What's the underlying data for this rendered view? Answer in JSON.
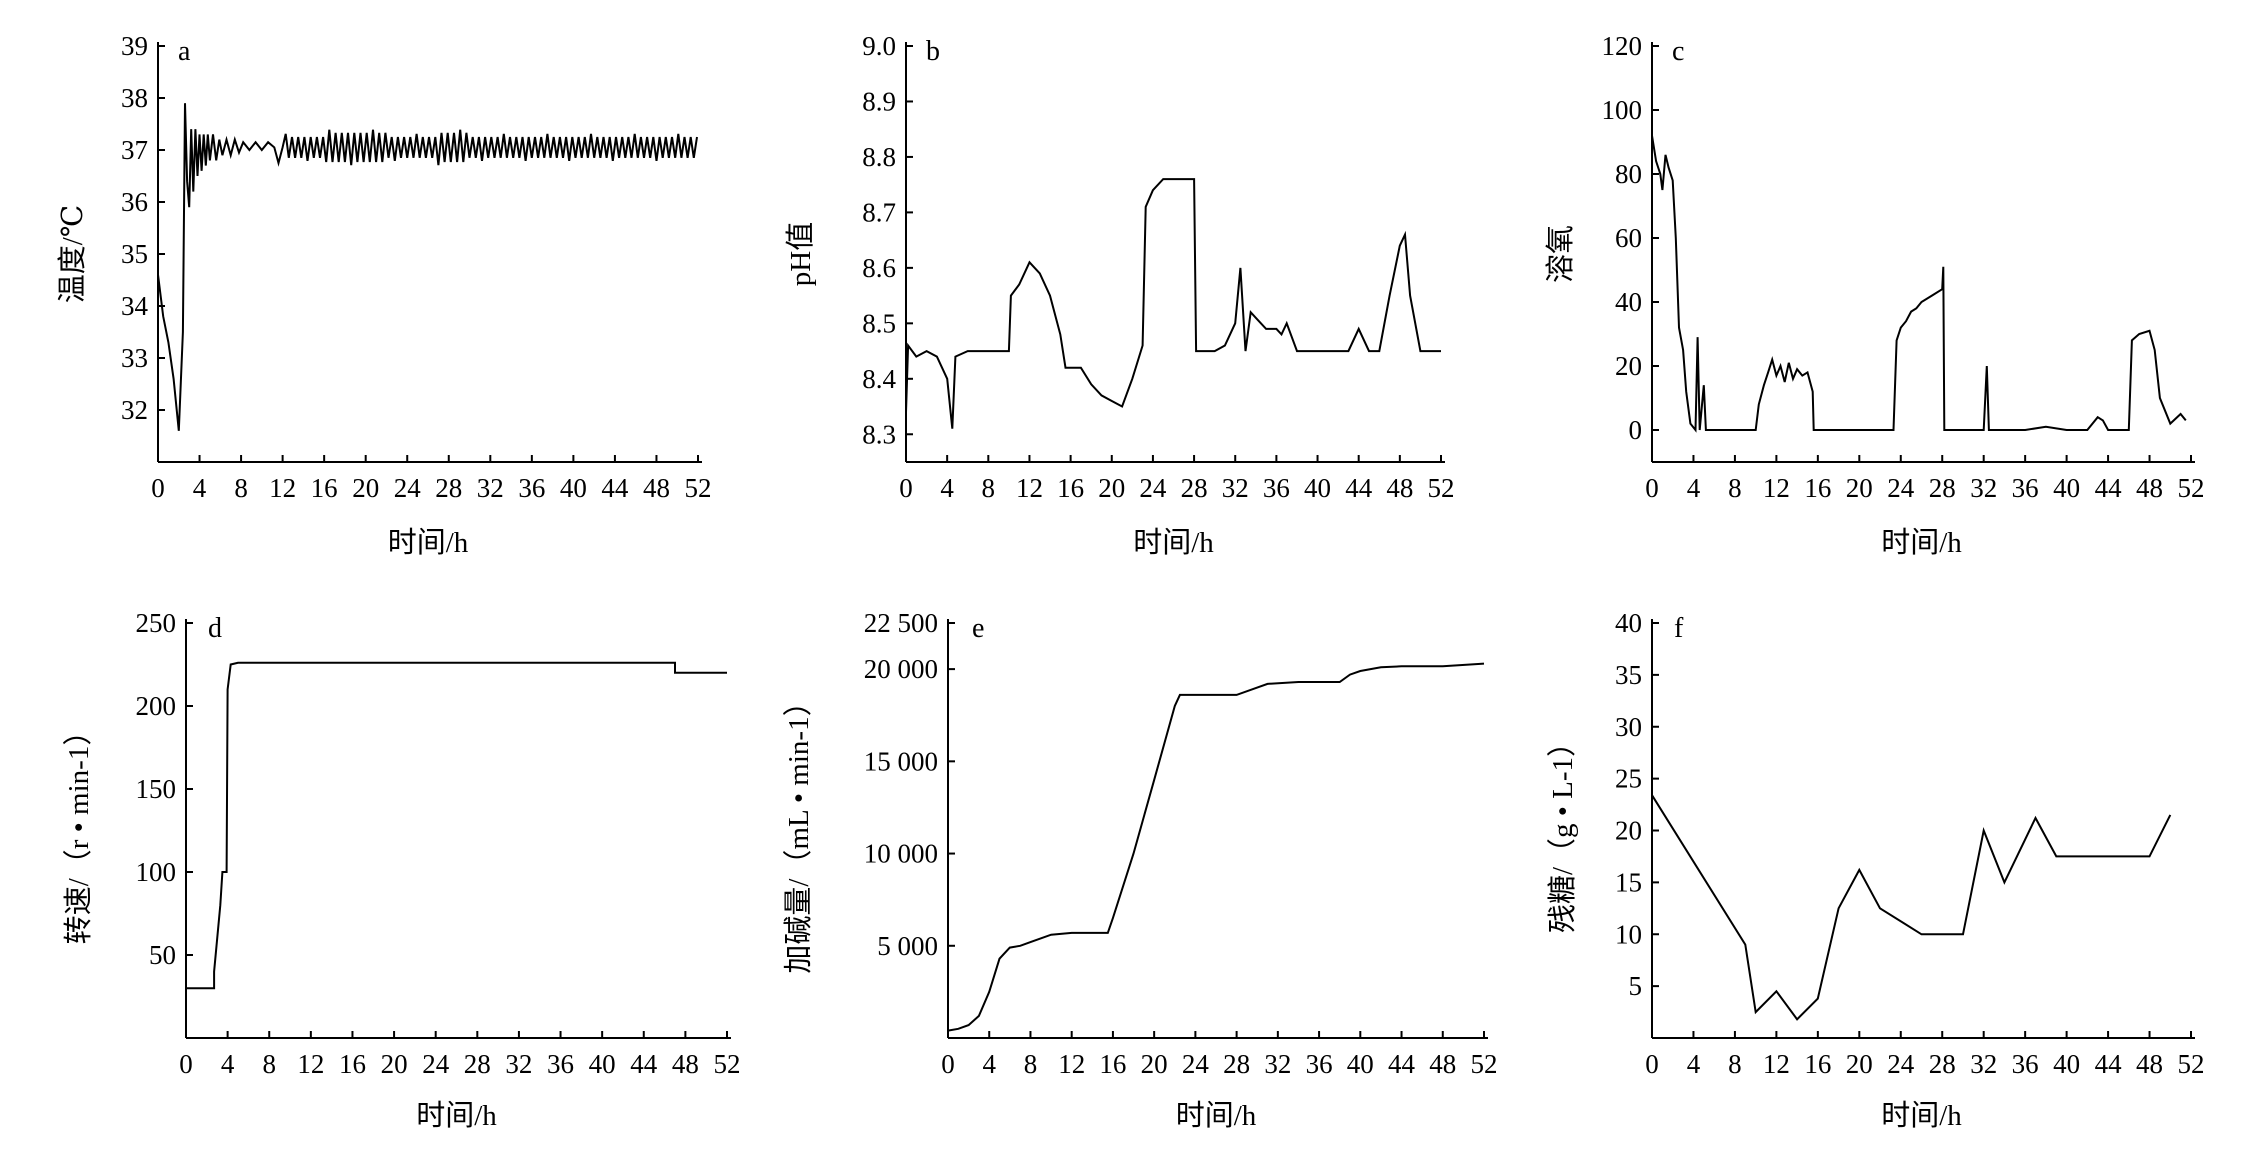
{
  "chart_data": [
    {
      "panel": "a",
      "type": "line",
      "xlabel": "时间/h",
      "ylabel": "温度/℃",
      "xlim": [
        0,
        52
      ],
      "ylim": [
        31,
        39
      ],
      "xticks": [
        0,
        4,
        8,
        12,
        16,
        20,
        24,
        28,
        32,
        36,
        40,
        44,
        48,
        52
      ],
      "yticks": [
        32,
        33,
        34,
        35,
        36,
        37,
        38,
        39
      ],
      "ytick_labels": [
        "32",
        "33",
        "34",
        "35",
        "36",
        "37",
        "38",
        "39"
      ],
      "oscillation": {
        "start": 3.5,
        "end": 52,
        "center": 37.05,
        "amplitude": 0.2,
        "period_h": 0.6
      },
      "points": [
        [
          0,
          34.6
        ],
        [
          0.5,
          33.8
        ],
        [
          1,
          33.3
        ],
        [
          1.5,
          32.6
        ],
        [
          2,
          31.6
        ],
        [
          2.4,
          33.5
        ],
        [
          2.6,
          37.9
        ],
        [
          2.8,
          36.4
        ],
        [
          3.0,
          35.9
        ],
        [
          3.2,
          37.4
        ],
        [
          3.4,
          36.2
        ],
        [
          3.6,
          37.4
        ],
        [
          3.8,
          36.5
        ],
        [
          4.0,
          37.3
        ],
        [
          4.2,
          36.6
        ],
        [
          4.4,
          37.3
        ],
        [
          4.6,
          36.7
        ],
        [
          4.8,
          37.3
        ],
        [
          5.0,
          36.8
        ],
        [
          5.3,
          37.3
        ],
        [
          5.6,
          36.8
        ],
        [
          5.9,
          37.2
        ],
        [
          6.2,
          36.9
        ],
        [
          6.6,
          37.2
        ],
        [
          7.0,
          36.9
        ],
        [
          7.4,
          37.2
        ],
        [
          7.8,
          36.95
        ],
        [
          8.2,
          37.15
        ],
        [
          8.8,
          37.0
        ],
        [
          9.4,
          37.15
        ],
        [
          10.0,
          37.0
        ],
        [
          10.6,
          37.15
        ],
        [
          11.2,
          37.05
        ],
        [
          11.6,
          36.75
        ],
        [
          12.0,
          37.05
        ]
      ]
    },
    {
      "panel": "b",
      "type": "line",
      "xlabel": "时间/h",
      "ylabel": "pH值",
      "xlim": [
        0,
        52
      ],
      "ylim": [
        8.25,
        9.0
      ],
      "xticks": [
        0,
        4,
        8,
        12,
        16,
        20,
        24,
        28,
        32,
        36,
        40,
        44,
        48,
        52
      ],
      "yticks": [
        8.3,
        8.4,
        8.5,
        8.6,
        8.7,
        8.8,
        8.9,
        9.0
      ],
      "ytick_labels": [
        "8.3",
        "8.4",
        "8.5",
        "8.6",
        "8.7",
        "8.8",
        "8.9",
        "9.0"
      ],
      "points": [
        [
          0,
          8.34
        ],
        [
          0.2,
          8.46
        ],
        [
          1,
          8.44
        ],
        [
          2,
          8.45
        ],
        [
          3,
          8.44
        ],
        [
          4,
          8.4
        ],
        [
          4.5,
          8.31
        ],
        [
          4.8,
          8.44
        ],
        [
          6,
          8.45
        ],
        [
          8,
          8.45
        ],
        [
          10,
          8.45
        ],
        [
          10.2,
          8.55
        ],
        [
          11,
          8.57
        ],
        [
          12,
          8.61
        ],
        [
          13,
          8.59
        ],
        [
          14,
          8.55
        ],
        [
          15,
          8.48
        ],
        [
          15.5,
          8.42
        ],
        [
          17,
          8.42
        ],
        [
          18,
          8.39
        ],
        [
          19,
          8.37
        ],
        [
          20,
          8.36
        ],
        [
          21,
          8.35
        ],
        [
          22,
          8.4
        ],
        [
          23,
          8.46
        ],
        [
          23.3,
          8.71
        ],
        [
          24,
          8.74
        ],
        [
          25,
          8.76
        ],
        [
          26,
          8.76
        ],
        [
          28,
          8.76
        ],
        [
          28.2,
          8.45
        ],
        [
          30,
          8.45
        ],
        [
          31,
          8.46
        ],
        [
          32,
          8.5
        ],
        [
          32.5,
          8.6
        ],
        [
          33,
          8.45
        ],
        [
          33.5,
          8.52
        ],
        [
          34,
          8.51
        ],
        [
          35,
          8.49
        ],
        [
          36,
          8.49
        ],
        [
          36.5,
          8.48
        ],
        [
          37,
          8.5
        ],
        [
          38,
          8.45
        ],
        [
          40,
          8.45
        ],
        [
          42,
          8.45
        ],
        [
          43,
          8.45
        ],
        [
          44,
          8.49
        ],
        [
          45,
          8.45
        ],
        [
          46,
          8.45
        ],
        [
          47,
          8.55
        ],
        [
          48,
          8.64
        ],
        [
          48.5,
          8.66
        ],
        [
          49,
          8.55
        ],
        [
          50,
          8.45
        ],
        [
          51,
          8.45
        ],
        [
          52,
          8.45
        ]
      ]
    },
    {
      "panel": "c",
      "type": "line",
      "xlabel": "时间/h",
      "ylabel": "溶氧",
      "xlim": [
        0,
        52
      ],
      "ylim": [
        -10,
        120
      ],
      "xticks": [
        0,
        4,
        8,
        12,
        16,
        20,
        24,
        28,
        32,
        36,
        40,
        44,
        48,
        52
      ],
      "yticks": [
        0,
        20,
        40,
        60,
        80,
        100,
        120
      ],
      "ytick_labels": [
        "0",
        "20",
        "40",
        "60",
        "80",
        "100",
        "120"
      ],
      "points": [
        [
          0,
          92
        ],
        [
          0.4,
          84
        ],
        [
          0.8,
          80
        ],
        [
          1.0,
          75
        ],
        [
          1.3,
          86
        ],
        [
          1.6,
          82
        ],
        [
          2.0,
          78
        ],
        [
          2.3,
          60
        ],
        [
          2.6,
          32
        ],
        [
          3.0,
          25
        ],
        [
          3.3,
          12
        ],
        [
          3.7,
          2
        ],
        [
          4.2,
          0
        ],
        [
          4.4,
          29
        ],
        [
          4.6,
          0
        ],
        [
          5.0,
          14
        ],
        [
          5.2,
          0
        ],
        [
          6,
          0
        ],
        [
          8,
          0
        ],
        [
          10,
          0
        ],
        [
          10.3,
          8
        ],
        [
          10.8,
          14
        ],
        [
          11.2,
          18
        ],
        [
          11.6,
          22
        ],
        [
          12,
          17
        ],
        [
          12.4,
          20
        ],
        [
          12.8,
          15
        ],
        [
          13.2,
          21
        ],
        [
          13.6,
          16
        ],
        [
          14,
          19
        ],
        [
          14.5,
          17
        ],
        [
          15,
          18
        ],
        [
          15.5,
          12
        ],
        [
          15.6,
          0
        ],
        [
          18,
          0
        ],
        [
          20,
          0
        ],
        [
          22,
          0
        ],
        [
          23.3,
          0
        ],
        [
          23.6,
          28
        ],
        [
          24,
          32
        ],
        [
          24.5,
          34
        ],
        [
          25,
          37
        ],
        [
          25.5,
          38
        ],
        [
          26,
          40
        ],
        [
          27,
          42
        ],
        [
          28,
          44
        ],
        [
          28.1,
          51
        ],
        [
          28.2,
          0
        ],
        [
          30,
          0
        ],
        [
          32,
          0
        ],
        [
          32.3,
          20
        ],
        [
          32.5,
          0
        ],
        [
          36,
          0
        ],
        [
          38,
          1
        ],
        [
          40,
          0
        ],
        [
          42,
          0
        ],
        [
          43,
          4
        ],
        [
          43.5,
          3
        ],
        [
          44,
          0
        ],
        [
          46,
          0
        ],
        [
          46.3,
          28
        ],
        [
          47,
          30
        ],
        [
          48,
          31
        ],
        [
          48.5,
          25
        ],
        [
          49,
          10
        ],
        [
          50,
          2
        ],
        [
          51,
          5
        ],
        [
          51.5,
          3
        ]
      ]
    },
    {
      "panel": "d",
      "type": "line",
      "xlabel": "时间/h",
      "ylabel": "转速/（r • min-1）",
      "xlim": [
        0,
        52
      ],
      "ylim": [
        0,
        250
      ],
      "xticks": [
        0,
        4,
        8,
        12,
        16,
        20,
        24,
        28,
        32,
        36,
        40,
        44,
        48,
        52
      ],
      "yticks": [
        50,
        100,
        150,
        200,
        250
      ],
      "ytick_labels": [
        "50",
        "100",
        "150",
        "200",
        "250"
      ],
      "points": [
        [
          0,
          30
        ],
        [
          2.7,
          30
        ],
        [
          2.7,
          40
        ],
        [
          3.0,
          60
        ],
        [
          3.3,
          80
        ],
        [
          3.5,
          100
        ],
        [
          3.9,
          100
        ],
        [
          4.0,
          210
        ],
        [
          4.3,
          225
        ],
        [
          5,
          226
        ],
        [
          20,
          226
        ],
        [
          40,
          226
        ],
        [
          47,
          226
        ],
        [
          47,
          220
        ],
        [
          52,
          220
        ]
      ]
    },
    {
      "panel": "e",
      "type": "line",
      "xlabel": "时间/h",
      "ylabel": "加碱量/（mL • min-1）",
      "xlim": [
        0,
        52
      ],
      "ylim": [
        0,
        22500
      ],
      "xticks": [
        0,
        4,
        8,
        12,
        16,
        20,
        24,
        28,
        32,
        36,
        40,
        44,
        48,
        52
      ],
      "yticks": [
        5000,
        10000,
        15000,
        20000,
        22500
      ],
      "ytick_labels": [
        "5 000",
        "10 000",
        "15 000",
        "20 000",
        "22 500"
      ],
      "points": [
        [
          0,
          400
        ],
        [
          1,
          500
        ],
        [
          2,
          700
        ],
        [
          3,
          1200
        ],
        [
          4,
          2500
        ],
        [
          5,
          4300
        ],
        [
          6,
          4900
        ],
        [
          7,
          5000
        ],
        [
          8,
          5200
        ],
        [
          10,
          5600
        ],
        [
          12,
          5700
        ],
        [
          14,
          5700
        ],
        [
          15.5,
          5700
        ],
        [
          16,
          6500
        ],
        [
          18,
          10000
        ],
        [
          20,
          14000
        ],
        [
          22,
          18000
        ],
        [
          22.5,
          18600
        ],
        [
          24,
          18600
        ],
        [
          28,
          18600
        ],
        [
          30,
          19000
        ],
        [
          31,
          19200
        ],
        [
          34,
          19300
        ],
        [
          38,
          19300
        ],
        [
          39,
          19700
        ],
        [
          40,
          19900
        ],
        [
          42,
          20100
        ],
        [
          44,
          20150
        ],
        [
          48,
          20150
        ],
        [
          52,
          20300
        ]
      ]
    },
    {
      "panel": "f",
      "type": "line",
      "xlabel": "时间/h",
      "ylabel": "残糖/（g • L-1）",
      "xlim": [
        0,
        52
      ],
      "ylim": [
        0,
        40
      ],
      "xticks": [
        0,
        4,
        8,
        12,
        16,
        20,
        24,
        28,
        32,
        36,
        40,
        44,
        48,
        52
      ],
      "yticks": [
        5,
        10,
        15,
        20,
        25,
        30,
        35,
        40
      ],
      "ytick_labels": [
        "5",
        "10",
        "15",
        "20",
        "25",
        "30",
        "35",
        "40"
      ],
      "points": [
        [
          0,
          23.4
        ],
        [
          9,
          9.0
        ],
        [
          10,
          2.5
        ],
        [
          12,
          4.5
        ],
        [
          14,
          1.8
        ],
        [
          16,
          3.8
        ],
        [
          18,
          12.5
        ],
        [
          20,
          16.2
        ],
        [
          22,
          12.5
        ],
        [
          26,
          10.0
        ],
        [
          30,
          10.0
        ],
        [
          32,
          20.0
        ],
        [
          34,
          15.0
        ],
        [
          37,
          21.2
        ],
        [
          39,
          17.5
        ],
        [
          44,
          17.5
        ],
        [
          48,
          17.5
        ],
        [
          50,
          21.5
        ]
      ]
    }
  ]
}
